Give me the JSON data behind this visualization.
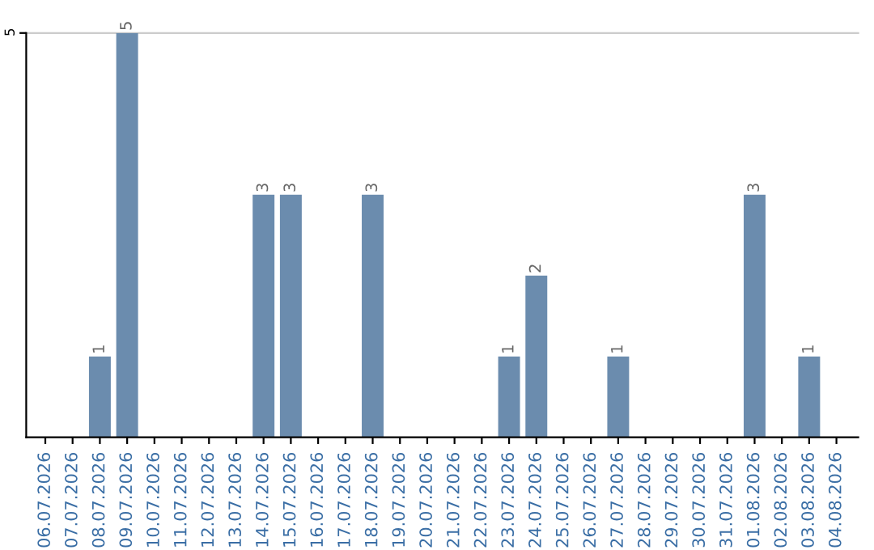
{
  "chart_data": {
    "type": "bar",
    "categories": [
      "06.07.2026",
      "07.07.2026",
      "08.07.2026",
      "09.07.2026",
      "10.07.2026",
      "11.07.2026",
      "12.07.2026",
      "13.07.2026",
      "14.07.2026",
      "15.07.2026",
      "16.07.2026",
      "17.07.2026",
      "18.07.2026",
      "19.07.2026",
      "20.07.2026",
      "21.07.2026",
      "22.07.2026",
      "23.07.2026",
      "24.07.2026",
      "25.07.2026",
      "26.07.2026",
      "27.07.2026",
      "28.07.2026",
      "29.07.2026",
      "30.07.2026",
      "31.07.2026",
      "01.08.2026",
      "02.08.2026",
      "03.08.2026",
      "04.08.2026"
    ],
    "values": [
      0,
      0,
      1,
      5,
      0,
      0,
      0,
      0,
      3,
      3,
      0,
      0,
      3,
      0,
      0,
      0,
      0,
      1,
      2,
      0,
      0,
      1,
      0,
      0,
      0,
      0,
      3,
      0,
      1,
      0
    ],
    "value_labels": [
      null,
      null,
      "1",
      "5",
      null,
      null,
      null,
      null,
      "3",
      "3",
      null,
      null,
      "3",
      null,
      null,
      null,
      null,
      "1",
      "2",
      null,
      null,
      "1",
      null,
      null,
      null,
      null,
      "3",
      null,
      "1",
      null
    ],
    "color": "#6b8cae",
    "ylim": [
      0,
      5
    ],
    "yticks": [
      5
    ],
    "ref_lines": [
      {
        "axis": "y",
        "value": 5,
        "color": "#cccccc"
      }
    ]
  }
}
